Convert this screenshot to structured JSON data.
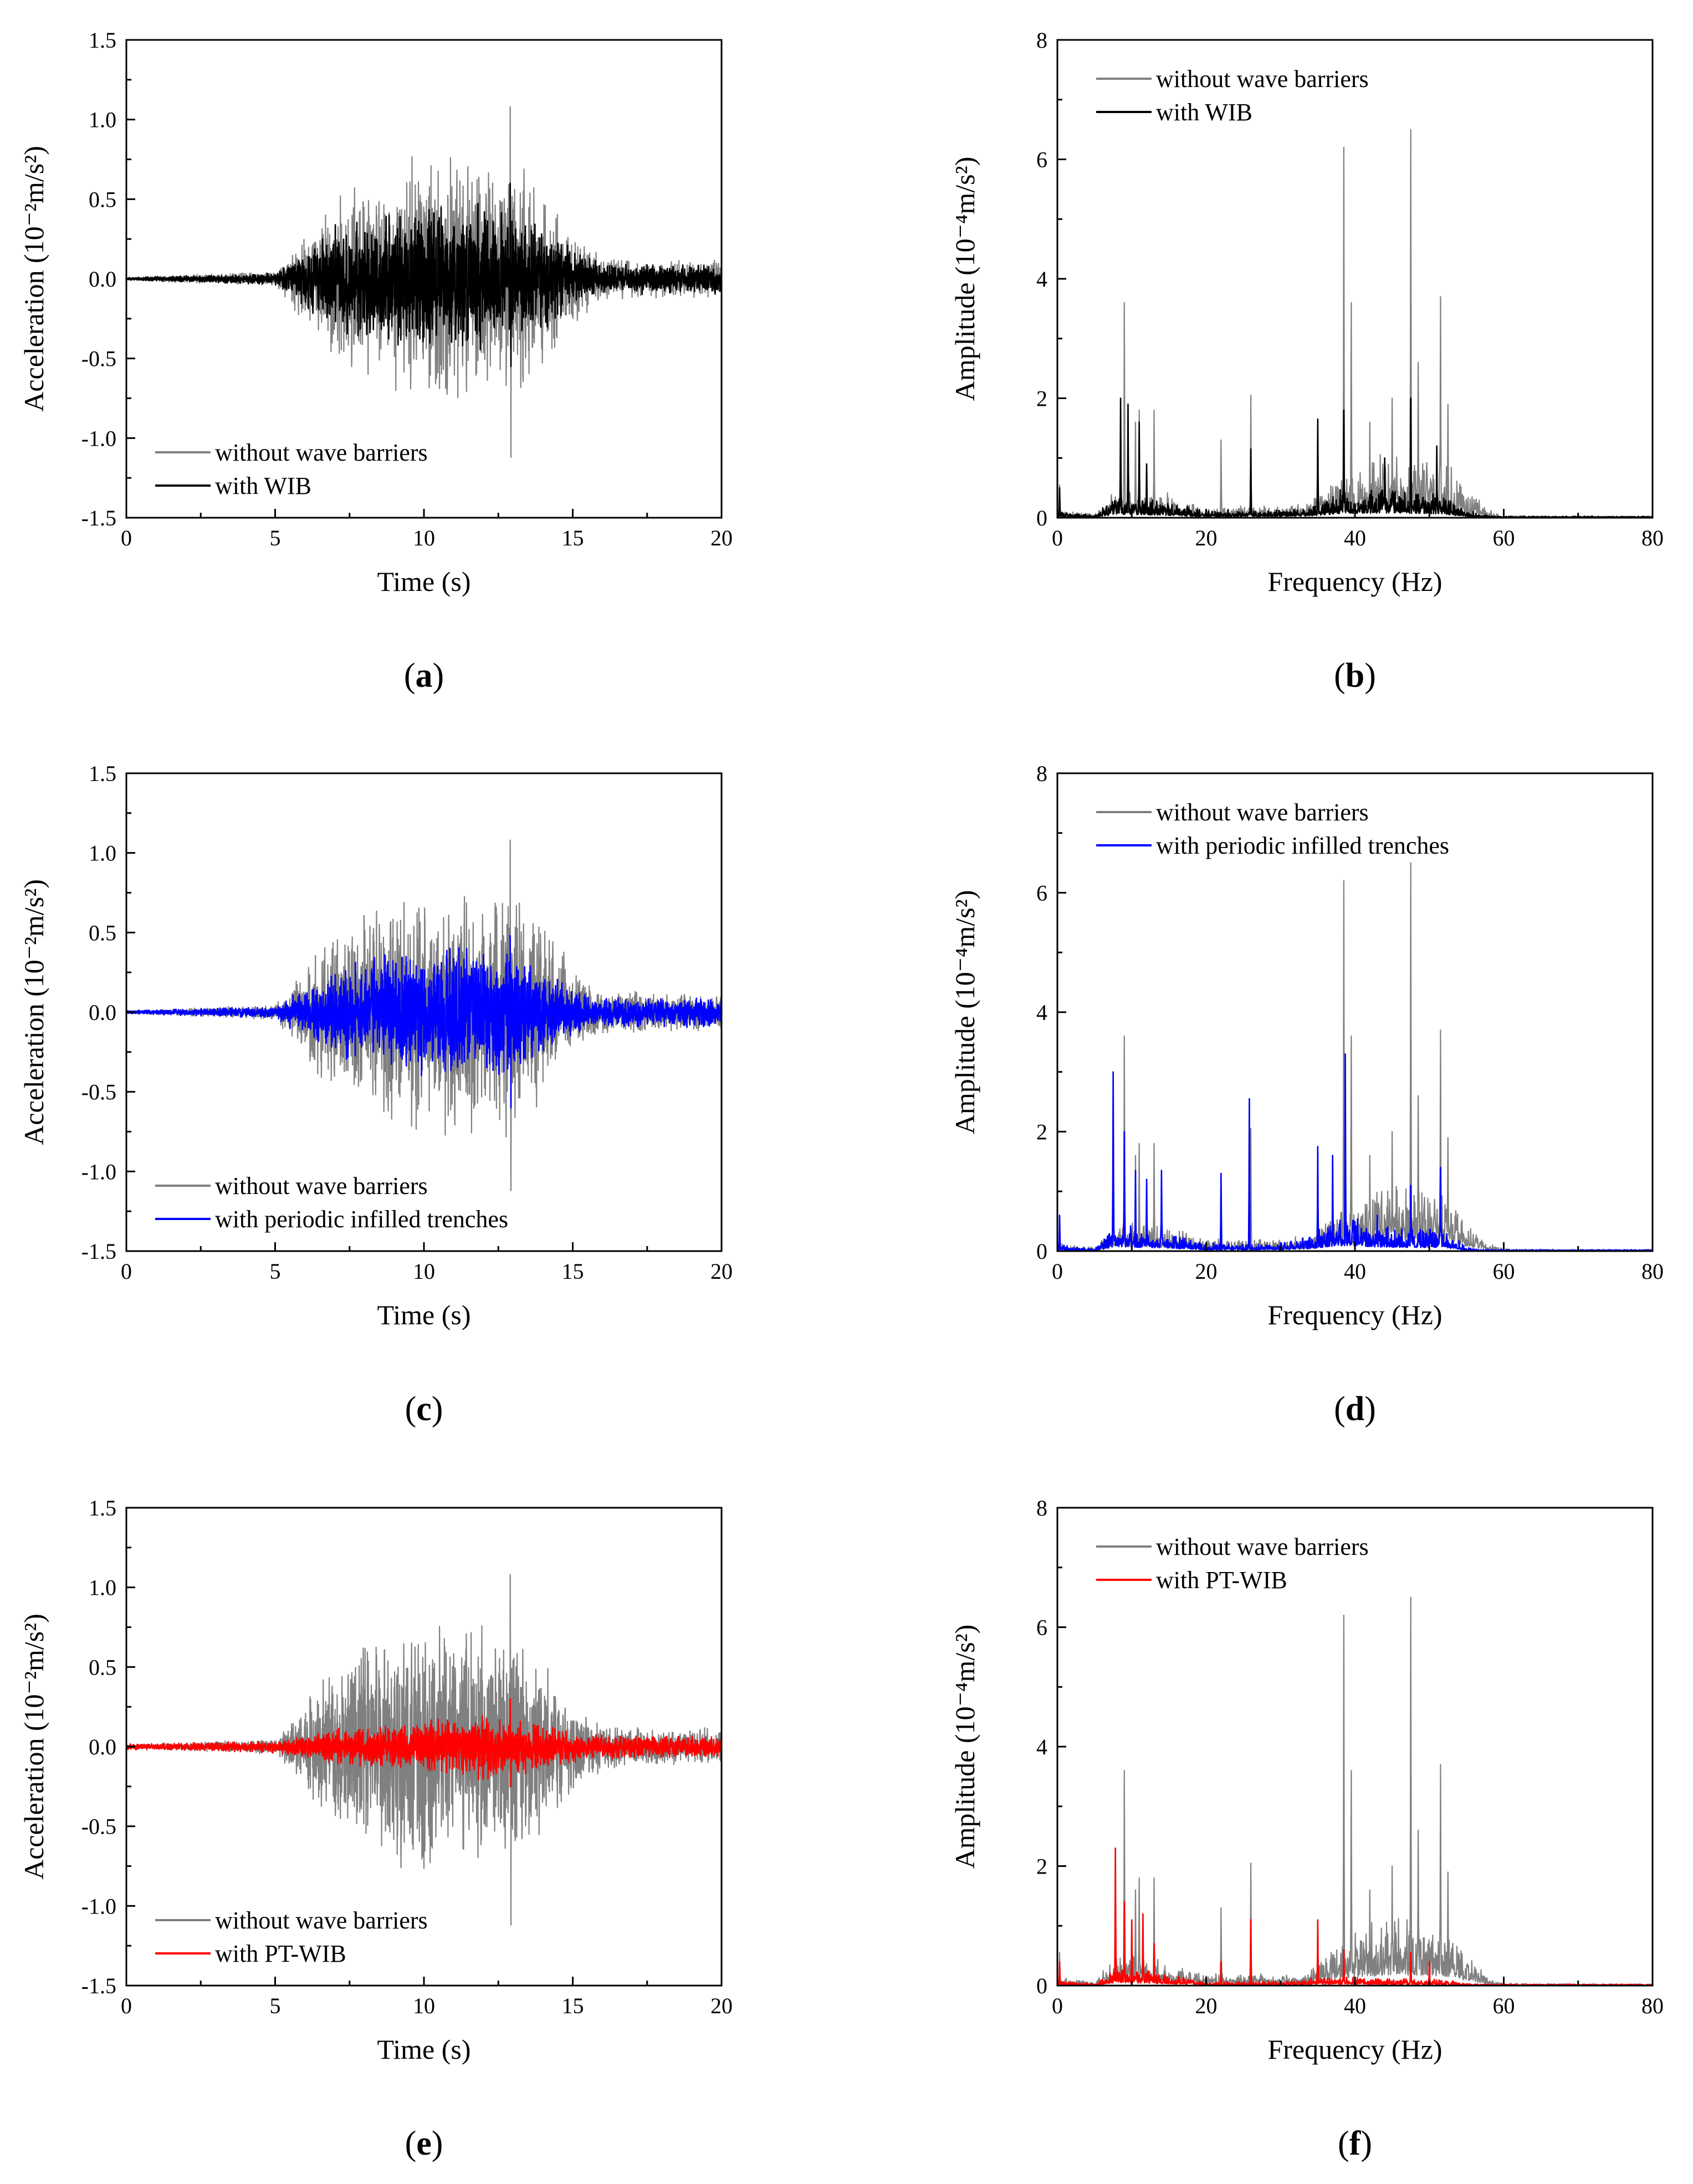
{
  "colors": {
    "baseline": "#808080",
    "with_WIB": "#000000",
    "with_periodic_infilled_trenches": "#0000ff",
    "with_PT_WIB": "#ff0000"
  },
  "chart_data": [
    {
      "panel": "a",
      "caption_label": "a",
      "type": "line",
      "xlabel": "Time (s)",
      "ylabel": "Acceleration (10⁻²m/s²)",
      "xlim": [
        0,
        20
      ],
      "ylim": [
        -1.5,
        1.5
      ],
      "xticks": [
        0,
        5,
        10,
        15,
        20
      ],
      "yticks": [
        -1.5,
        -1.0,
        -0.5,
        0.0,
        0.5,
        1.0,
        1.5
      ],
      "ytick_labels": [
        "-1.5",
        "-1.0",
        "-0.5",
        "0.0",
        "0.5",
        "1.0",
        "1.5"
      ],
      "legend_position": "bottom-left",
      "series": [
        {
          "name": "without wave barriers",
          "color": "#808080",
          "peak_positive": 1.08,
          "peak_negative": -1.12,
          "active_window": [
            5.5,
            15.5
          ],
          "envelope_t": [
            0,
            5,
            7,
            9,
            10,
            11,
            12,
            13,
            14,
            15,
            16,
            18,
            20
          ],
          "envelope_a": [
            0.01,
            0.05,
            0.55,
            0.75,
            0.8,
            0.8,
            0.8,
            0.8,
            0.6,
            0.3,
            0.15,
            0.12,
            0.12
          ]
        },
        {
          "name": "with WIB",
          "color": "#000000",
          "peak_positive": 0.6,
          "peak_negative": -0.55,
          "envelope_t": [
            0,
            5,
            7,
            9,
            10,
            11,
            12,
            13,
            14,
            15,
            16,
            18,
            20
          ],
          "envelope_a": [
            0.01,
            0.04,
            0.35,
            0.45,
            0.5,
            0.5,
            0.5,
            0.45,
            0.35,
            0.2,
            0.1,
            0.1,
            0.1
          ]
        }
      ]
    },
    {
      "panel": "b",
      "caption_label": "b",
      "type": "line",
      "xlabel": "Frequency (Hz)",
      "ylabel": "Amplitude (10⁻⁴m/s²)",
      "xlim": [
        0,
        80
      ],
      "ylim": [
        0,
        8
      ],
      "xticks": [
        0,
        20,
        40,
        60,
        80
      ],
      "yticks": [
        0,
        2,
        4,
        6,
        8
      ],
      "ytick_labels": [
        "0",
        "2",
        "4",
        "6",
        "8"
      ],
      "legend_position": "top-left",
      "series": [
        {
          "name": "without wave barriers",
          "color": "#808080",
          "peaks": [
            [
              0.3,
              0.55
            ],
            [
              9,
              3.6
            ],
            [
              10.5,
              1.6
            ],
            [
              11,
              1.8
            ],
            [
              13,
              1.8
            ],
            [
              22,
              1.3
            ],
            [
              26,
              2.05
            ],
            [
              35,
              1.0
            ],
            [
              38.5,
              6.2
            ],
            [
              39.5,
              3.6
            ],
            [
              42,
              1.6
            ],
            [
              45,
              2.0
            ],
            [
              47.5,
              6.5
            ],
            [
              48.5,
              2.6
            ],
            [
              51.5,
              3.7
            ],
            [
              52.5,
              1.9
            ]
          ],
          "band_f": [
            0,
            5,
            8,
            15,
            20,
            30,
            34,
            38,
            45,
            52,
            55,
            58,
            60,
            80
          ],
          "band_a": [
            0.1,
            0.05,
            0.4,
            0.3,
            0.15,
            0.15,
            0.2,
            0.6,
            0.9,
            0.8,
            0.4,
            0.1,
            0.03,
            0.02
          ]
        },
        {
          "name": "with WIB",
          "color": "#000000",
          "peaks": [
            [
              0.3,
              0.5
            ],
            [
              8.5,
              2.0
            ],
            [
              9.5,
              1.9
            ],
            [
              11,
              1.6
            ],
            [
              12,
              0.9
            ],
            [
              26,
              1.15
            ],
            [
              35,
              1.65
            ],
            [
              38.5,
              1.8
            ],
            [
              44,
              1.0
            ],
            [
              47.5,
              2.0
            ],
            [
              51,
              1.2
            ]
          ],
          "band_f": [
            0,
            5,
            8,
            15,
            20,
            30,
            34,
            38,
            45,
            52,
            55,
            58,
            60,
            80
          ],
          "band_a": [
            0.08,
            0.04,
            0.3,
            0.2,
            0.1,
            0.1,
            0.15,
            0.35,
            0.4,
            0.3,
            0.1,
            0.03,
            0.02,
            0.02
          ]
        }
      ]
    },
    {
      "panel": "c",
      "caption_label": "c",
      "type": "line",
      "xlabel": "Time (s)",
      "ylabel": "Acceleration (10⁻²m/s²)",
      "xlim": [
        0,
        20
      ],
      "ylim": [
        -1.5,
        1.5
      ],
      "xticks": [
        0,
        5,
        10,
        15,
        20
      ],
      "yticks": [
        -1.5,
        -1.0,
        -0.5,
        0.0,
        0.5,
        1.0,
        1.5
      ],
      "ytick_labels": [
        "-1.5",
        "-1.0",
        "-0.5",
        "0.0",
        "0.5",
        "1.0",
        "1.5"
      ],
      "legend_position": "bottom-left",
      "series": [
        {
          "name": "without wave barriers",
          "color": "#808080",
          "peak_positive": 1.08,
          "peak_negative": -1.12,
          "active_window": [
            5.5,
            15.5
          ],
          "envelope_t": [
            0,
            5,
            7,
            9,
            10,
            11,
            12,
            13,
            14,
            15,
            16,
            18,
            20
          ],
          "envelope_a": [
            0.01,
            0.05,
            0.55,
            0.75,
            0.8,
            0.8,
            0.8,
            0.8,
            0.6,
            0.3,
            0.15,
            0.12,
            0.12
          ]
        },
        {
          "name": "with periodic infilled trenches",
          "color": "#0000ff",
          "peak_positive": 0.48,
          "peak_negative": -0.6,
          "envelope_t": [
            0,
            5,
            7,
            9,
            10,
            11,
            12,
            13,
            14,
            15,
            16,
            18,
            20
          ],
          "envelope_a": [
            0.01,
            0.04,
            0.3,
            0.4,
            0.4,
            0.42,
            0.42,
            0.42,
            0.3,
            0.15,
            0.1,
            0.1,
            0.1
          ]
        }
      ]
    },
    {
      "panel": "d",
      "caption_label": "d",
      "type": "line",
      "xlabel": "Frequency (Hz)",
      "ylabel": "Amplitude (10⁻⁴m/s²)",
      "xlim": [
        0,
        80
      ],
      "ylim": [
        0,
        8
      ],
      "xticks": [
        0,
        20,
        40,
        60,
        80
      ],
      "yticks": [
        0,
        2,
        4,
        6,
        8
      ],
      "ytick_labels": [
        "0",
        "2",
        "4",
        "6",
        "8"
      ],
      "legend_position": "top-left",
      "series": [
        {
          "name": "without wave barriers",
          "color": "#808080",
          "peaks": [
            [
              0.3,
              0.55
            ],
            [
              9,
              3.6
            ],
            [
              10.5,
              1.6
            ],
            [
              11,
              1.8
            ],
            [
              13,
              1.8
            ],
            [
              22,
              1.3
            ],
            [
              26,
              2.05
            ],
            [
              35,
              1.0
            ],
            [
              38.5,
              6.2
            ],
            [
              39.5,
              3.6
            ],
            [
              42,
              1.6
            ],
            [
              45,
              2.0
            ],
            [
              47.5,
              6.5
            ],
            [
              48.5,
              2.6
            ],
            [
              51.5,
              3.7
            ],
            [
              52.5,
              1.9
            ]
          ],
          "band_f": [
            0,
            5,
            8,
            15,
            20,
            30,
            34,
            38,
            45,
            52,
            55,
            58,
            60,
            80
          ],
          "band_a": [
            0.1,
            0.05,
            0.4,
            0.3,
            0.15,
            0.15,
            0.2,
            0.6,
            0.9,
            0.8,
            0.4,
            0.1,
            0.03,
            0.02
          ]
        },
        {
          "name": "with periodic infilled trenches",
          "color": "#0000ff",
          "peaks": [
            [
              0.3,
              0.6
            ],
            [
              7.5,
              3.0
            ],
            [
              9,
              2.0
            ],
            [
              10.5,
              1.35
            ],
            [
              12,
              1.2
            ],
            [
              14,
              1.35
            ],
            [
              22,
              1.3
            ],
            [
              25.8,
              2.55
            ],
            [
              35,
              1.75
            ],
            [
              37,
              1.6
            ],
            [
              38.7,
              3.3
            ],
            [
              43,
              0.6
            ],
            [
              47.5,
              1.1
            ],
            [
              51.5,
              1.4
            ]
          ],
          "band_f": [
            0,
            5,
            8,
            15,
            20,
            30,
            34,
            38,
            45,
            52,
            55,
            58,
            60,
            80
          ],
          "band_a": [
            0.08,
            0.04,
            0.35,
            0.25,
            0.1,
            0.12,
            0.2,
            0.45,
            0.3,
            0.3,
            0.05,
            0.02,
            0.02,
            0.02
          ]
        }
      ]
    },
    {
      "panel": "e",
      "caption_label": "e",
      "type": "line",
      "xlabel": "Time (s)",
      "ylabel": "Acceleration (10⁻²m/s²)",
      "xlim": [
        0,
        20
      ],
      "ylim": [
        -1.5,
        1.5
      ],
      "xticks": [
        0,
        5,
        10,
        15,
        20
      ],
      "yticks": [
        -1.5,
        -1.0,
        -0.5,
        0.0,
        0.5,
        1.0,
        1.5
      ],
      "ytick_labels": [
        "-1.5",
        "-1.0",
        "-0.5",
        "0.0",
        "0.5",
        "1.0",
        "1.5"
      ],
      "legend_position": "bottom-left",
      "series": [
        {
          "name": "without wave barriers",
          "color": "#808080",
          "peak_positive": 1.08,
          "peak_negative": -1.12,
          "active_window": [
            5.5,
            15.5
          ],
          "envelope_t": [
            0,
            5,
            7,
            9,
            10,
            11,
            12,
            13,
            14,
            15,
            16,
            18,
            20
          ],
          "envelope_a": [
            0.01,
            0.05,
            0.55,
            0.75,
            0.8,
            0.8,
            0.8,
            0.8,
            0.6,
            0.3,
            0.15,
            0.12,
            0.12
          ]
        },
        {
          "name": "with PT-WIB",
          "color": "#ff0000",
          "peak_positive": 0.3,
          "peak_negative": -0.25,
          "envelope_t": [
            0,
            5,
            7,
            9,
            10,
            11,
            12,
            13,
            14,
            15,
            16,
            18,
            20
          ],
          "envelope_a": [
            0.02,
            0.04,
            0.12,
            0.15,
            0.18,
            0.2,
            0.22,
            0.2,
            0.15,
            0.1,
            0.08,
            0.07,
            0.07
          ]
        }
      ]
    },
    {
      "panel": "f",
      "caption_label": "f",
      "type": "line",
      "xlabel": "Frequency (Hz)",
      "ylabel": "Amplitude (10⁻⁴m/s²)",
      "xlim": [
        0,
        80
      ],
      "ylim": [
        0,
        8
      ],
      "xticks": [
        0,
        20,
        40,
        60,
        80
      ],
      "yticks": [
        0,
        2,
        4,
        6,
        8
      ],
      "ytick_labels": [
        "0",
        "2",
        "4",
        "6",
        "8"
      ],
      "legend_position": "top-left",
      "series": [
        {
          "name": "without wave barriers",
          "color": "#808080",
          "peaks": [
            [
              0.3,
              0.55
            ],
            [
              9,
              3.6
            ],
            [
              10.5,
              1.6
            ],
            [
              11,
              1.8
            ],
            [
              13,
              1.8
            ],
            [
              22,
              1.3
            ],
            [
              26,
              2.05
            ],
            [
              35,
              1.0
            ],
            [
              38.5,
              6.2
            ],
            [
              39.5,
              3.6
            ],
            [
              42,
              1.6
            ],
            [
              45,
              2.0
            ],
            [
              47.5,
              6.5
            ],
            [
              48.5,
              2.6
            ],
            [
              51.5,
              3.7
            ],
            [
              52.5,
              1.9
            ]
          ],
          "band_f": [
            0,
            5,
            8,
            15,
            20,
            30,
            34,
            38,
            45,
            52,
            55,
            58,
            60,
            80
          ],
          "band_a": [
            0.1,
            0.05,
            0.4,
            0.3,
            0.15,
            0.15,
            0.2,
            0.6,
            0.9,
            0.8,
            0.4,
            0.1,
            0.03,
            0.02
          ]
        },
        {
          "name": "with PT-WIB",
          "color": "#ff0000",
          "peaks": [
            [
              0.3,
              0.4
            ],
            [
              7.8,
              2.3
            ],
            [
              9,
              1.4
            ],
            [
              10,
              1.1
            ],
            [
              11.5,
              1.2
            ],
            [
              13,
              0.7
            ],
            [
              22,
              0.4
            ],
            [
              26,
              1.1
            ],
            [
              35,
              1.1
            ],
            [
              38.5,
              0.6
            ],
            [
              47.5,
              0.55
            ],
            [
              50,
              0.4
            ]
          ],
          "band_f": [
            0,
            5,
            8,
            15,
            20,
            30,
            34,
            38,
            45,
            52,
            55,
            58,
            60,
            80
          ],
          "band_a": [
            0.06,
            0.03,
            0.25,
            0.15,
            0.05,
            0.06,
            0.1,
            0.12,
            0.1,
            0.08,
            0.03,
            0.02,
            0.02,
            0.02
          ]
        }
      ]
    }
  ]
}
